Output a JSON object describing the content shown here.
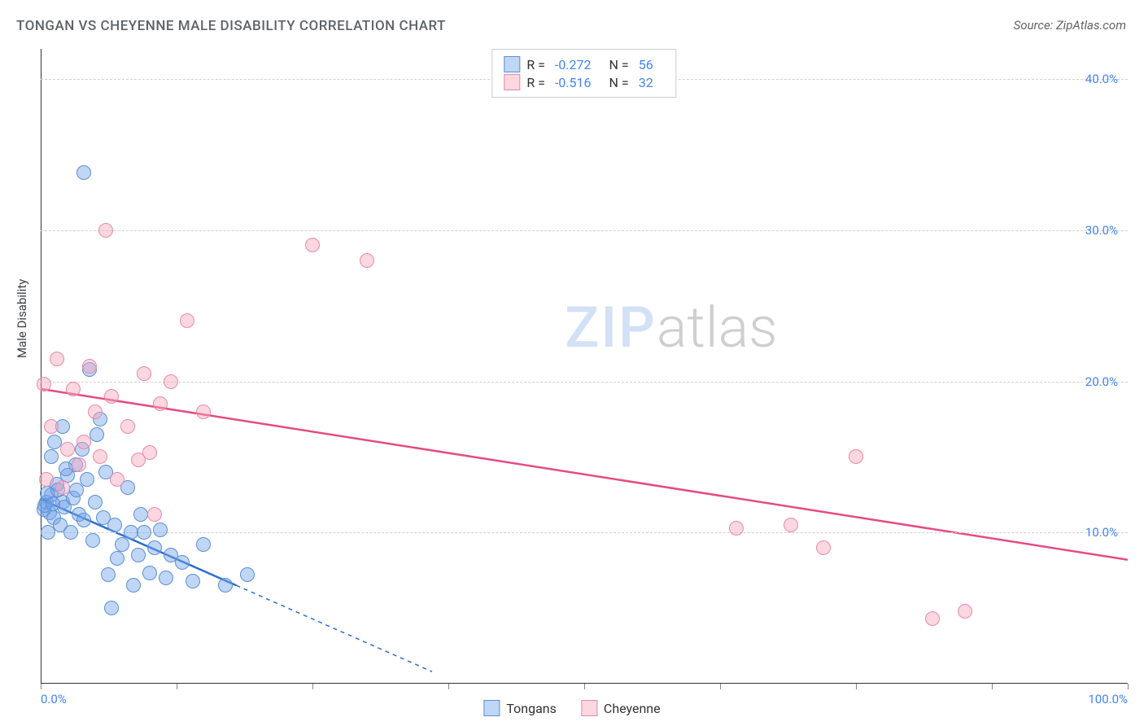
{
  "title": "TONGAN VS CHEYENNE MALE DISABILITY CORRELATION CHART",
  "source": "Source: ZipAtlas.com",
  "ylabel": "Male Disability",
  "watermark": {
    "a": "ZIP",
    "b": "atlas"
  },
  "chart": {
    "type": "scatter",
    "background_color": "#ffffff",
    "grid_color": "#d0d0d0",
    "axis_color": "#333333",
    "xlim": [
      0,
      100
    ],
    "ylim": [
      0,
      42
    ],
    "x_ticks": [
      0,
      12.5,
      25,
      37.5,
      50,
      62.5,
      75,
      87.5,
      100
    ],
    "x_tick_labels": {
      "0": "0.0%",
      "100": "100.0%"
    },
    "y_ticks": [
      10,
      20,
      30,
      40
    ],
    "y_tick_labels": {
      "10": "10.0%",
      "20": "20.0%",
      "30": "30.0%",
      "40": "40.0%"
    },
    "series": [
      {
        "name": "Tongans",
        "color_fill": "rgba(116,164,232,0.45)",
        "color_stroke": "#5b8fd6",
        "line_color": "#2b6ed1",
        "marker_radius": 9,
        "r": "-0.272",
        "n": "56",
        "trend": {
          "x1": 0,
          "y1": 12.2,
          "x2": 18,
          "y2": 6.5,
          "dash_to_x": 36,
          "dash_to_y": 0.8
        },
        "points": [
          [
            0.3,
            11.5
          ],
          [
            0.5,
            12.0
          ],
          [
            0.8,
            11.3
          ],
          [
            1.0,
            12.5
          ],
          [
            1.2,
            11.0
          ],
          [
            1.5,
            13.2
          ],
          [
            1.8,
            10.5
          ],
          [
            2.0,
            12.0
          ],
          [
            2.2,
            11.7
          ],
          [
            2.5,
            13.8
          ],
          [
            2.8,
            10.0
          ],
          [
            3.0,
            12.3
          ],
          [
            3.2,
            14.5
          ],
          [
            3.5,
            11.2
          ],
          [
            3.8,
            15.5
          ],
          [
            4.0,
            10.8
          ],
          [
            4.3,
            13.5
          ],
          [
            4.5,
            20.8
          ],
          [
            4.8,
            9.5
          ],
          [
            5.0,
            12.0
          ],
          [
            5.2,
            16.5
          ],
          [
            5.5,
            17.5
          ],
          [
            5.8,
            11.0
          ],
          [
            6.0,
            14.0
          ],
          [
            6.2,
            7.2
          ],
          [
            6.5,
            5.0
          ],
          [
            6.8,
            10.5
          ],
          [
            7.0,
            8.3
          ],
          [
            4.0,
            33.8
          ],
          [
            7.5,
            9.2
          ],
          [
            8.0,
            13.0
          ],
          [
            8.3,
            10.0
          ],
          [
            8.5,
            6.5
          ],
          [
            9.0,
            8.5
          ],
          [
            9.2,
            11.2
          ],
          [
            9.5,
            10.0
          ],
          [
            10.0,
            7.3
          ],
          [
            10.5,
            9.0
          ],
          [
            11.0,
            10.2
          ],
          [
            11.5,
            7.0
          ],
          [
            12.0,
            8.5
          ],
          [
            13.0,
            8.0
          ],
          [
            14.0,
            6.8
          ],
          [
            15.0,
            9.2
          ],
          [
            17.0,
            6.5
          ],
          [
            19.0,
            7.2
          ],
          [
            1.0,
            15.0
          ],
          [
            1.3,
            16.0
          ],
          [
            2.0,
            17.0
          ],
          [
            0.7,
            10.0
          ],
          [
            0.4,
            11.8
          ],
          [
            0.6,
            12.6
          ],
          [
            1.1,
            11.9
          ],
          [
            1.6,
            12.8
          ],
          [
            2.3,
            14.2
          ],
          [
            3.3,
            12.8
          ]
        ]
      },
      {
        "name": "Cheyenne",
        "color_fill": "rgba(244,166,189,0.45)",
        "color_stroke": "#e98aa8",
        "line_color": "#e64b82",
        "marker_radius": 9,
        "r": "-0.516",
        "n": "32",
        "trend": {
          "x1": 0,
          "y1": 19.5,
          "x2": 100,
          "y2": 8.2
        },
        "points": [
          [
            0.5,
            13.5
          ],
          [
            1.0,
            17.0
          ],
          [
            1.5,
            21.5
          ],
          [
            2.0,
            13.0
          ],
          [
            2.5,
            15.5
          ],
          [
            3.0,
            19.5
          ],
          [
            3.5,
            14.5
          ],
          [
            4.0,
            16.0
          ],
          [
            4.5,
            21.0
          ],
          [
            5.0,
            18.0
          ],
          [
            5.5,
            15.0
          ],
          [
            6.0,
            30.0
          ],
          [
            6.5,
            19.0
          ],
          [
            7.0,
            13.5
          ],
          [
            8.0,
            17.0
          ],
          [
            9.0,
            14.8
          ],
          [
            9.5,
            20.5
          ],
          [
            10.0,
            15.3
          ],
          [
            11.0,
            18.5
          ],
          [
            12.0,
            20.0
          ],
          [
            13.5,
            24.0
          ],
          [
            15.0,
            18.0
          ],
          [
            10.5,
            11.2
          ],
          [
            25.0,
            29.0
          ],
          [
            30.0,
            28.0
          ],
          [
            64.0,
            10.3
          ],
          [
            69.0,
            10.5
          ],
          [
            72.0,
            9.0
          ],
          [
            75.0,
            15.0
          ],
          [
            82.0,
            4.3
          ],
          [
            85.0,
            4.8
          ],
          [
            0.3,
            19.8
          ]
        ]
      }
    ]
  },
  "legend_top_label_r": "R =",
  "legend_top_label_n": "N =",
  "colors": {
    "tick_label": "#4285f4",
    "legend_val": "#4285f4"
  }
}
